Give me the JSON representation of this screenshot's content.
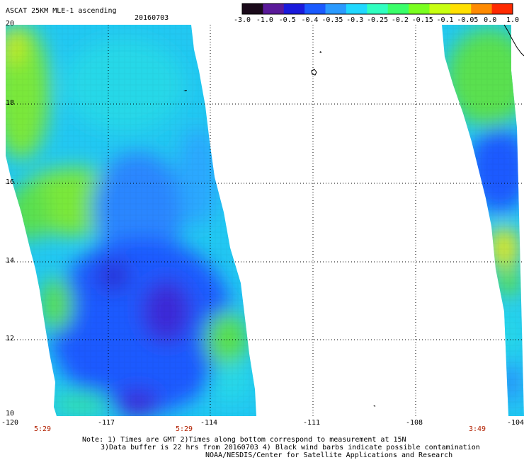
{
  "header": {
    "title": "ASCAT 25KM MLE-1 ascending",
    "date": "20160703"
  },
  "colorbar": {
    "labels": [
      "-3.0",
      "-1.0",
      "-0.5",
      "-0.4",
      "-0.35",
      "-0.3",
      "-0.25",
      "-0.2",
      "-0.15",
      "-0.1",
      "-0.05",
      "0.0",
      "1.0"
    ],
    "colors": [
      "#1a0a1a",
      "#5a1a9a",
      "#1a1adc",
      "#1a5aff",
      "#2a9aff",
      "#20d8ff",
      "#30ffc0",
      "#3aff6a",
      "#7aff20",
      "#c8ff10",
      "#ffe000",
      "#ff8a00",
      "#ff2a00"
    ]
  },
  "axes": {
    "lon_labels": [
      "-120",
      "-117",
      "-114",
      "-111",
      "-108",
      "-104"
    ],
    "lat_labels": [
      "20",
      "18",
      "16",
      "14",
      "12",
      "10"
    ]
  },
  "pass_times": [
    "5:29",
    "5:29",
    "3:49"
  ],
  "footer": {
    "line1": "Note: 1) Times are GMT 2)Times along bottom correspond to measurement at 15N",
    "line2": "3)Data buffer is 22 hrs from 20160703 4) Black wind barbs indicate possible contamination",
    "line3": "NOAA/NESDIS/Center for Satellite Applications and Research"
  }
}
